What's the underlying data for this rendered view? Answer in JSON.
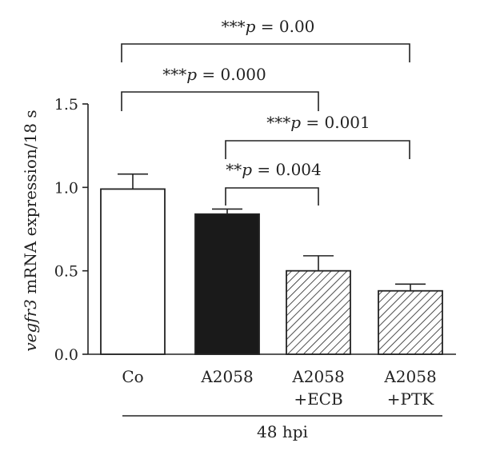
{
  "chart_data": {
    "type": "bar",
    "categories": [
      {
        "line1": "Co",
        "line2": ""
      },
      {
        "line1": "A2058",
        "line2": ""
      },
      {
        "line1": "A2058",
        "line2": "+ECB"
      },
      {
        "line1": "A2058",
        "line2": "+PTK"
      }
    ],
    "values": [
      0.99,
      0.84,
      0.5,
      0.38
    ],
    "errors": [
      0.09,
      0.03,
      0.09,
      0.04
    ],
    "fills": [
      "white",
      "black",
      "hatch",
      "hatch"
    ],
    "ylabel_italic": "vegfr3",
    "ylabel_rest": " mRNA expression/18 s",
    "ylim": [
      0,
      1.5
    ],
    "yticks": [
      "0.0",
      "0.5",
      "1.0",
      "1.5"
    ],
    "group_label": "48 hpi",
    "comparisons": [
      {
        "from": 0,
        "to": 3,
        "stars": "***",
        "p_label": "p",
        "p_value": " = 0.00"
      },
      {
        "from": 0,
        "to": 2,
        "stars": "***",
        "p_label": "p",
        "p_value": " = 0.000"
      },
      {
        "from": 1,
        "to": 3,
        "stars": "***",
        "p_label": "p",
        "p_value": " = 0.001"
      },
      {
        "from": 1,
        "to": 2,
        "stars": "**",
        "p_label": "p",
        "p_value": " = 0.004"
      }
    ]
  }
}
